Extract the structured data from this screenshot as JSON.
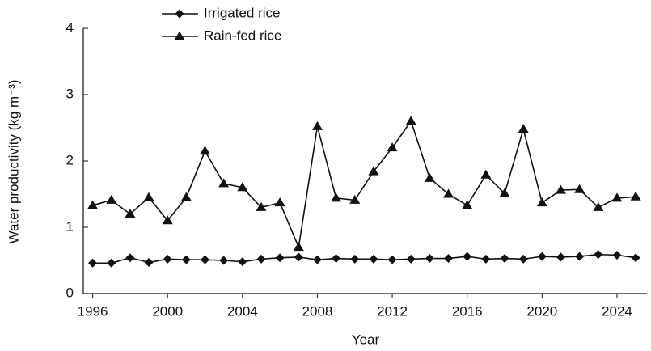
{
  "chart_data": {
    "type": "line",
    "x_label": "Year",
    "y_label": "Water productivity (kg m⁻³)",
    "x": [
      1996,
      1997,
      1998,
      1999,
      2000,
      2001,
      2002,
      2003,
      2004,
      2005,
      2006,
      2007,
      2008,
      2009,
      2010,
      2011,
      2012,
      2013,
      2014,
      2015,
      2016,
      2017,
      2018,
      2019,
      2020,
      2021,
      2022,
      2023,
      2024,
      2025
    ],
    "series": [
      {
        "name": "Irrigated rice",
        "color": "#111111",
        "marker": "diamond",
        "values": [
          0.46,
          0.46,
          0.54,
          0.47,
          0.52,
          0.51,
          0.51,
          0.5,
          0.48,
          0.52,
          0.54,
          0.55,
          0.51,
          0.53,
          0.52,
          0.52,
          0.51,
          0.52,
          0.53,
          0.53,
          0.56,
          0.52,
          0.53,
          0.52,
          0.56,
          0.55,
          0.56,
          0.59,
          0.58,
          0.54
        ]
      },
      {
        "name": "Rain-fed rice",
        "color": "#111111",
        "marker": "triangle",
        "values": [
          1.33,
          1.41,
          1.2,
          1.45,
          1.1,
          1.45,
          2.15,
          1.66,
          1.6,
          1.3,
          1.37,
          0.7,
          2.52,
          1.44,
          1.41,
          1.84,
          2.2,
          2.6,
          1.74,
          1.5,
          1.33,
          1.79,
          1.51,
          2.48,
          1.37,
          1.56,
          1.57,
          1.3,
          1.44,
          1.46
        ]
      }
    ],
    "xlim": [
      1995.5,
      2025.6
    ],
    "xticks": [
      1996,
      2000,
      2004,
      2008,
      2012,
      2016,
      2020,
      2024
    ],
    "ylim": [
      0,
      4
    ],
    "yticks": [
      0,
      1,
      2,
      3,
      4
    ],
    "grid": false,
    "legend": "top-left"
  }
}
